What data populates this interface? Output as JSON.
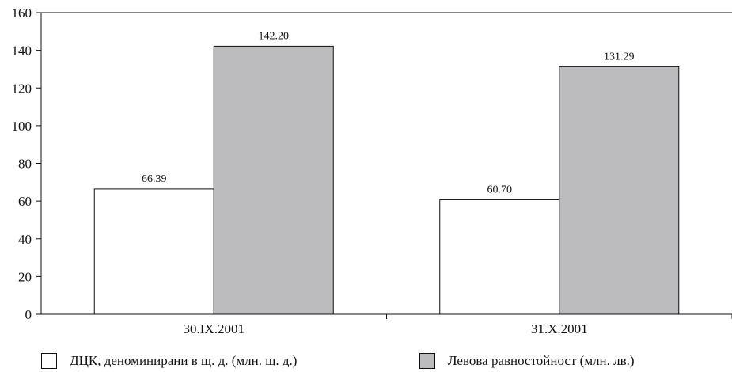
{
  "chart_data": {
    "type": "bar",
    "title": "",
    "xlabel": "",
    "ylabel": "",
    "categories": [
      "30.IX.2001",
      "31.X.2001"
    ],
    "series": [
      {
        "name": "ДЦК, деноминирани в щ. д. (млн. щ. д.)",
        "values": [
          66.39,
          60.7
        ],
        "labels": [
          "66.39",
          "60.70"
        ],
        "color": "#ffffff"
      },
      {
        "name": "Левова равностойност (млн. лв.)",
        "values": [
          142.2,
          131.29
        ],
        "labels": [
          "142.20",
          "131.29"
        ],
        "color": "#bcbcbf"
      }
    ],
    "ylim": [
      0,
      160
    ],
    "yticks": [
      0,
      20,
      40,
      60,
      80,
      100,
      120,
      140,
      160
    ],
    "grid": false,
    "legend_position": "bottom"
  }
}
